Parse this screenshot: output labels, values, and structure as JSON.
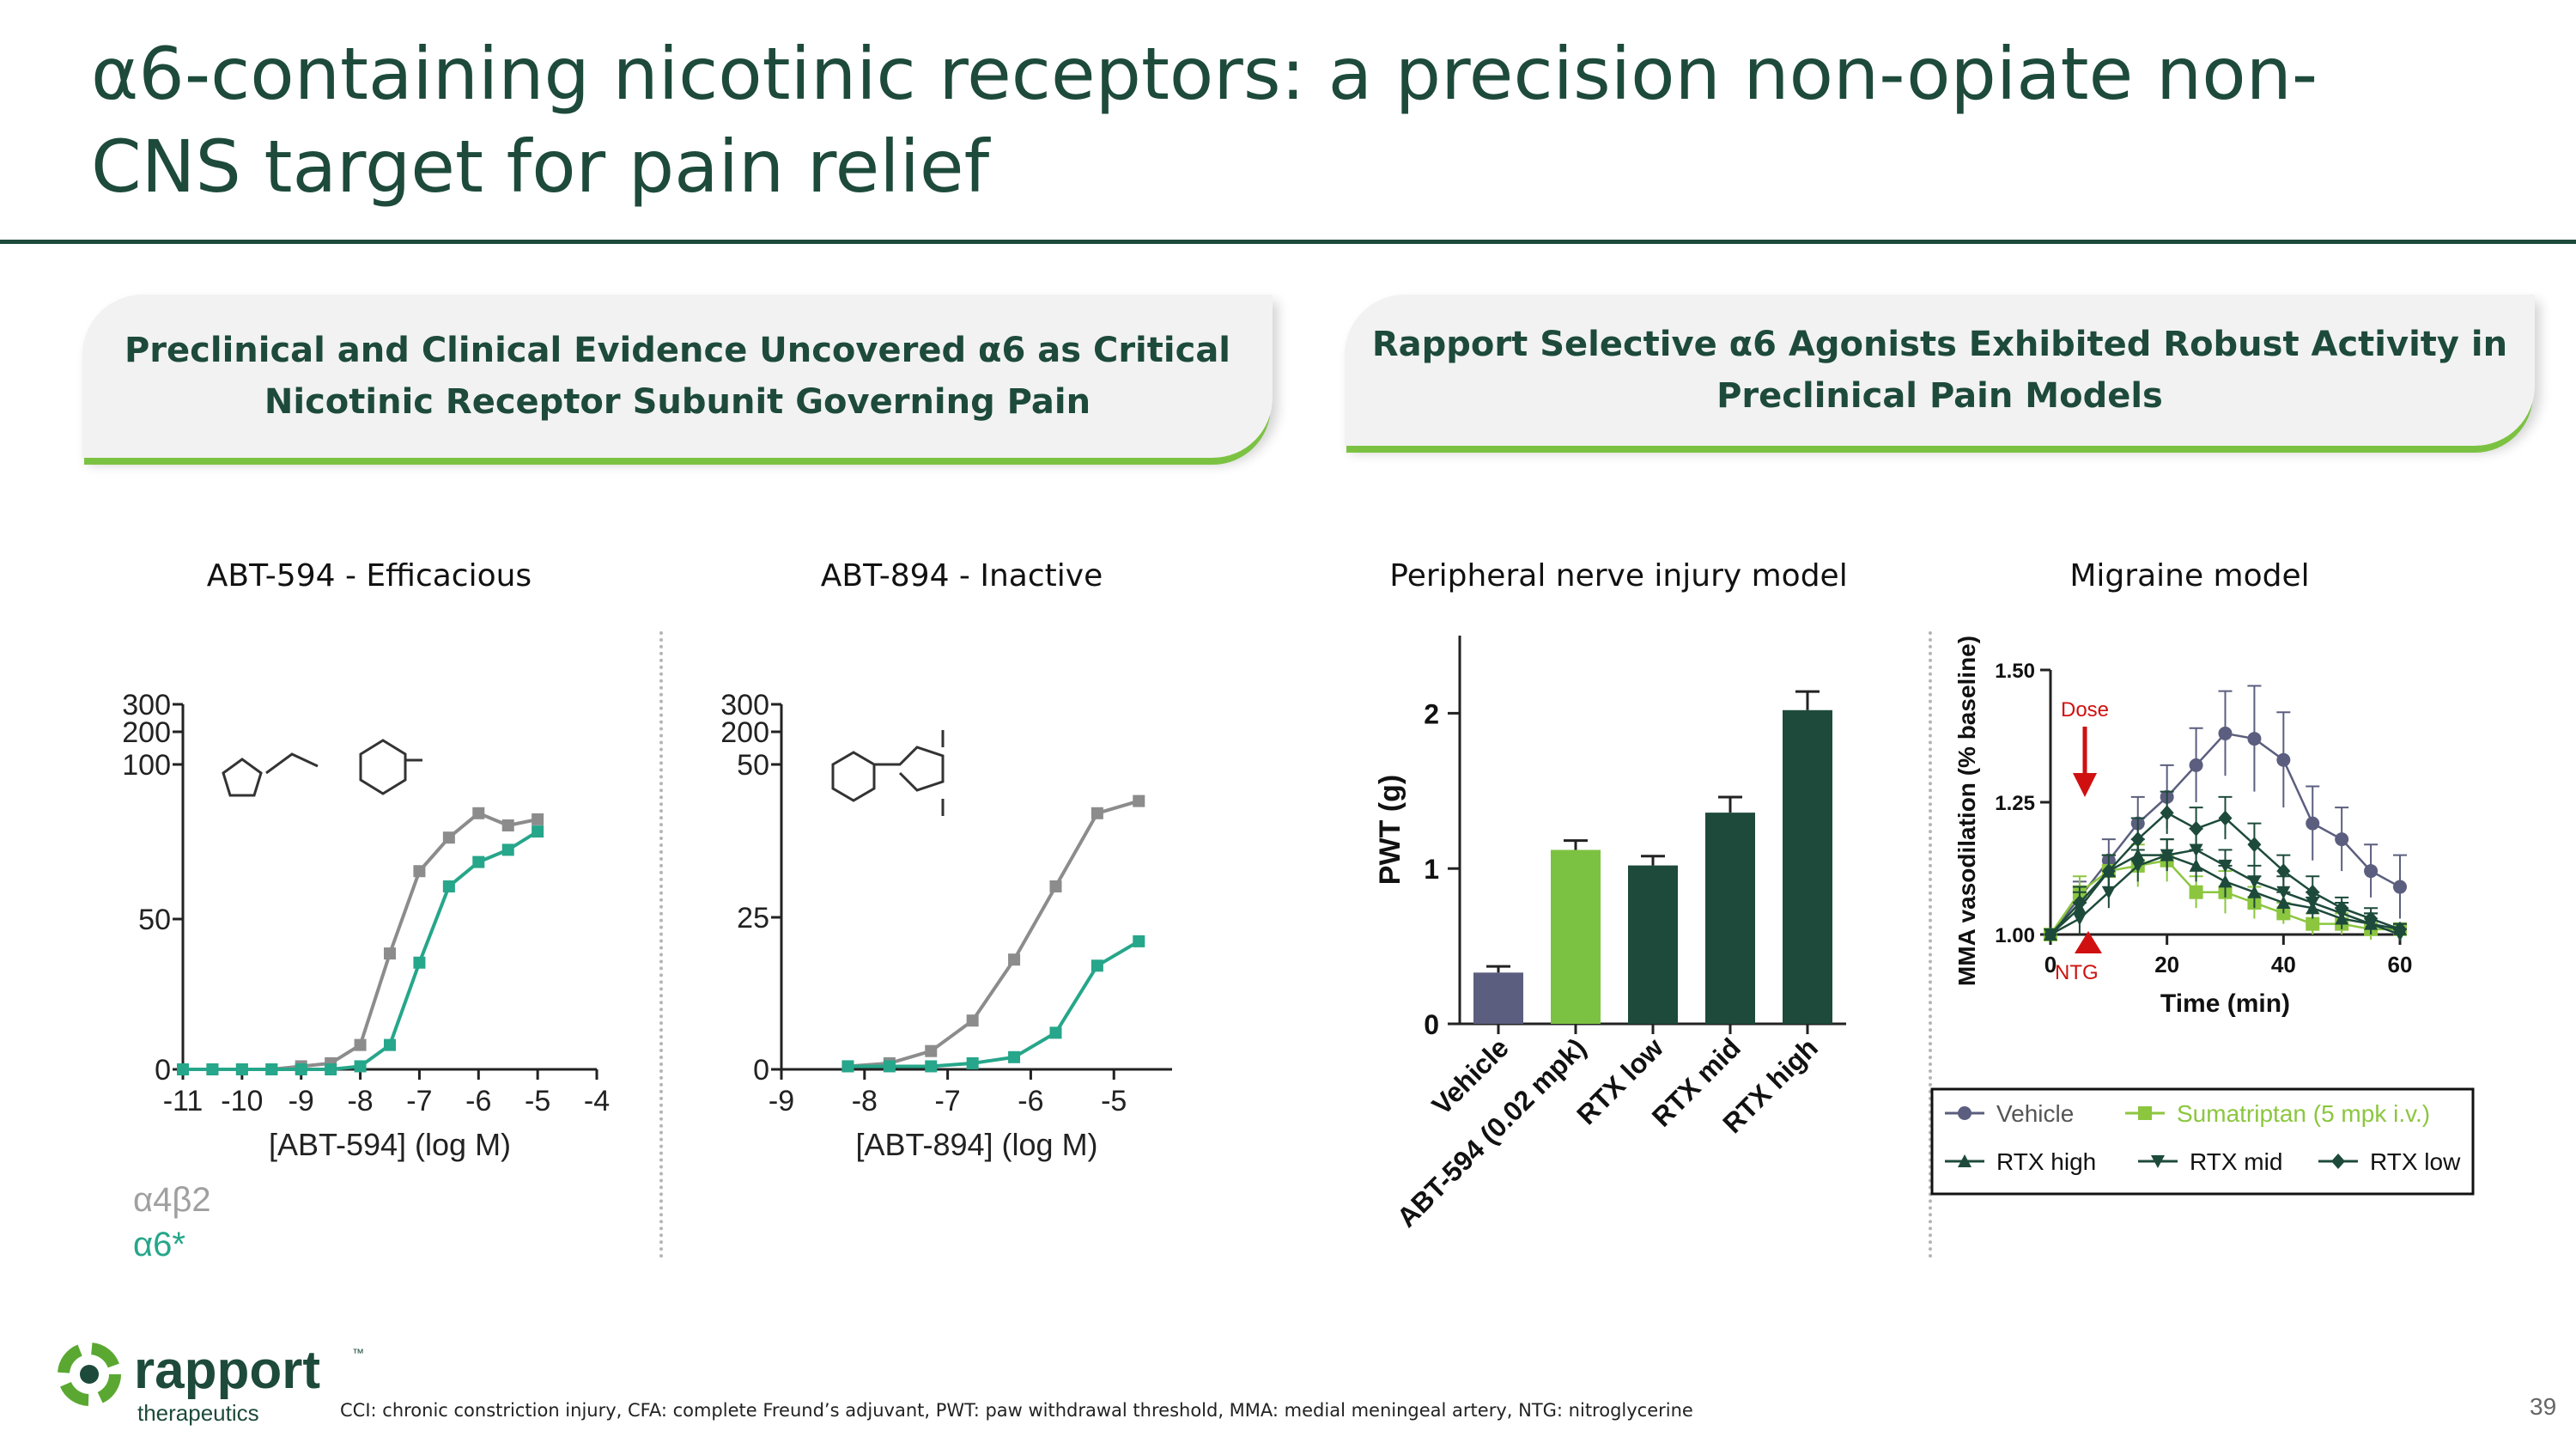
{
  "title": "α6-containing nicotinic receptors: a precision non-opiate non-CNS target for pain relief",
  "left_header": "Preclinical and Clinical Evidence Uncovered α6 as Critical\nNicotinic Receptor Subunit Governing Pain",
  "right_header": "Rapport Selective α6 Agonists Exhibited Robust Activity in\nPreclinical Pain Models",
  "legend_receptors": {
    "a4b2": "α4β2",
    "a6": "α6*"
  },
  "colors": {
    "dark_green": "#1d4a3b",
    "light_green": "#7cc242",
    "gray_curve": "#8c8c8c",
    "teal_curve": "#26a68a",
    "vehicle": "#5b5e7e",
    "sumatriptan": "#8cc63f",
    "red": "#d01010"
  },
  "footnote": "CCI: chronic constriction injury, CFA: complete Freund’s adjuvant, PWT: paw withdrawal threshold, MMA: medial meningeal artery, NTG: nitroglycerine",
  "page_number": "39",
  "logo": {
    "name": "rapport",
    "tm": "™",
    "sub": "therapeutics"
  },
  "chart_data": [
    {
      "type": "scatter",
      "title": "ABT-594 - Efficacious",
      "xlabel": "[ABT-594] (log  M)",
      "ylabel": "",
      "xlim": [
        -11,
        -4
      ],
      "x_ticks": [
        "-11",
        "-10",
        "-9",
        "-8",
        "-7",
        "-6",
        "-5",
        "-4"
      ],
      "y_ticks": [
        "0",
        "50",
        "100",
        "200",
        "300"
      ],
      "series": [
        {
          "name": "α4β2",
          "x": [
            -11,
            -10.5,
            -10,
            -9.5,
            -9,
            -8.5,
            -8,
            -7.5,
            -7,
            -6.5,
            -6,
            -5.5,
            -5
          ],
          "y": [
            0,
            0,
            0,
            0,
            1,
            2,
            8,
            38,
            65,
            76,
            84,
            80,
            82
          ]
        },
        {
          "name": "α6*",
          "x": [
            -11,
            -10.5,
            -10,
            -9.5,
            -9,
            -8.5,
            -8,
            -7.5,
            -7,
            -6.5,
            -6,
            -5.5,
            -5
          ],
          "y": [
            0,
            0,
            0,
            0,
            0,
            0,
            1,
            8,
            35,
            60,
            68,
            72,
            78
          ]
        }
      ]
    },
    {
      "type": "scatter",
      "title": "ABT-894 - Inactive",
      "xlabel": "[ABT-894] (log  M)",
      "ylabel": "",
      "xlim": [
        -9,
        -4.3
      ],
      "x_ticks": [
        "-9",
        "-8",
        "-7",
        "-6",
        "-5"
      ],
      "y_ticks": [
        "0",
        "25",
        "50",
        "200",
        "300"
      ],
      "series": [
        {
          "name": "α4β2",
          "x": [
            -8.2,
            -7.7,
            -7.2,
            -6.7,
            -6.2,
            -5.7,
            -5.2,
            -4.7
          ],
          "y": [
            0.5,
            1,
            3,
            8,
            18,
            30,
            42,
            44
          ]
        },
        {
          "name": "α6*",
          "x": [
            -8.2,
            -7.7,
            -7.2,
            -6.7,
            -6.2,
            -5.7,
            -5.2,
            -4.7
          ],
          "y": [
            0.5,
            0.5,
            0.5,
            1,
            2,
            6,
            17,
            21
          ]
        }
      ]
    },
    {
      "type": "bar",
      "title": "Peripheral nerve injury model",
      "ylabel": "PWT (g)",
      "ylim": [
        0,
        2.5
      ],
      "y_ticks": [
        "0",
        "1",
        "2"
      ],
      "categories": [
        "Vehicle",
        "ABT-594 (0.02 mpk)",
        "RTX low",
        "RTX mid",
        "RTX high"
      ],
      "values": [
        0.33,
        1.12,
        1.02,
        1.36,
        2.02
      ],
      "errors": [
        0.04,
        0.06,
        0.06,
        0.1,
        0.12
      ],
      "bar_colors": [
        "#5b5e7e",
        "#7cc242",
        "#1d4a3b",
        "#1d4a3b",
        "#1d4a3b"
      ]
    },
    {
      "type": "line",
      "title": "Migraine model",
      "xlabel": "Time (min)",
      "ylabel": "MMA vasodilation  (% baseline)",
      "xlim": [
        0,
        60
      ],
      "ylim": [
        1.0,
        1.5
      ],
      "x_ticks": [
        "0",
        "20",
        "40",
        "60"
      ],
      "y_ticks": [
        "1.00",
        "1.25",
        "1.50"
      ],
      "annotations": {
        "dose": "Dose",
        "ntg": "NTG"
      },
      "legend": {
        "vehicle": "Vehicle",
        "sumatriptan": "Sumatriptan (5 mpk i.v.)",
        "rtx_high": "RTX high",
        "rtx_mid": "RTX mid",
        "rtx_low": "RTX low"
      },
      "x": [
        0,
        5,
        10,
        15,
        20,
        25,
        30,
        35,
        40,
        45,
        50,
        55,
        60
      ],
      "series": [
        {
          "name": "Vehicle",
          "y": [
            1.0,
            1.07,
            1.14,
            1.21,
            1.26,
            1.32,
            1.38,
            1.37,
            1.33,
            1.21,
            1.18,
            1.12,
            1.09
          ],
          "err": [
            0,
            0.03,
            0.04,
            0.05,
            0.06,
            0.07,
            0.08,
            0.1,
            0.09,
            0.07,
            0.06,
            0.05,
            0.06
          ]
        },
        {
          "name": "Sumatriptan (5 mpk i.v.)",
          "y": [
            1.0,
            1.08,
            1.12,
            1.13,
            1.14,
            1.08,
            1.08,
            1.06,
            1.04,
            1.02,
            1.02,
            1.01,
            1.01
          ],
          "err": [
            0,
            0.03,
            0.03,
            0.04,
            0.04,
            0.03,
            0.04,
            0.03,
            0.02,
            0.02,
            0.02,
            0.02,
            0.01
          ]
        },
        {
          "name": "RTX high",
          "y": [
            1.0,
            1.05,
            1.12,
            1.15,
            1.15,
            1.13,
            1.1,
            1.08,
            1.06,
            1.05,
            1.03,
            1.02,
            1.01
          ],
          "err": [
            0,
            0.03,
            0.03,
            0.03,
            0.03,
            0.03,
            0.03,
            0.03,
            0.02,
            0.02,
            0.02,
            0.02,
            0.01
          ]
        },
        {
          "name": "RTX mid",
          "y": [
            1.0,
            1.03,
            1.08,
            1.13,
            1.15,
            1.16,
            1.13,
            1.1,
            1.08,
            1.06,
            1.04,
            1.02,
            1.0
          ],
          "err": [
            0,
            0.03,
            0.03,
            0.03,
            0.03,
            0.04,
            0.03,
            0.03,
            0.03,
            0.02,
            0.02,
            0.02,
            0.01
          ]
        },
        {
          "name": "RTX low",
          "y": [
            1.0,
            1.06,
            1.12,
            1.18,
            1.23,
            1.2,
            1.22,
            1.17,
            1.12,
            1.08,
            1.05,
            1.03,
            1.01
          ],
          "err": [
            0,
            0.03,
            0.03,
            0.04,
            0.04,
            0.04,
            0.04,
            0.04,
            0.03,
            0.03,
            0.02,
            0.02,
            0.01
          ]
        }
      ]
    }
  ]
}
